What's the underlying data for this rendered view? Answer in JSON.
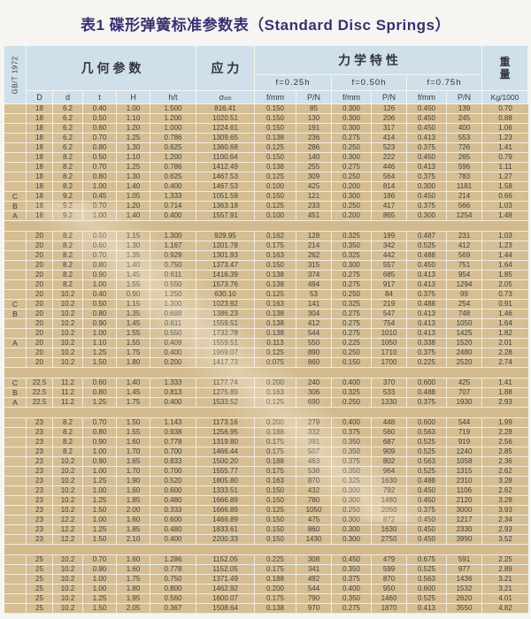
{
  "title": "表1 碟形弹簧标准参数表（Standard Disc Springs）",
  "appearance": {
    "title_color": "#393170",
    "header_bg": "#cfe0ea",
    "cell_bg": "#d5be94",
    "grid_line_color": "#f1ead9",
    "page_bg": "#f6f5f1"
  },
  "header": {
    "standard": "GB/T 1972",
    "geometry_group": "几 何 参 数",
    "stress_group": "应 力",
    "mechanical_group": "力 学 特 性",
    "weight_lines": [
      "重",
      "量"
    ],
    "deflections": [
      "f=0.25h",
      "f=0.50h",
      "f=0.75h"
    ],
    "geo_cols": [
      "D",
      "d",
      "t",
      "H",
      "h/t"
    ],
    "sigma_base": "σ",
    "sigma_sub": "om",
    "f_col": "f/mm",
    "p_col": "P/N",
    "weight_col": "Kg/1000"
  },
  "table": {
    "groups": [
      {
        "rows": [
          [
            "",
            "18",
            "6.2",
            "0.40",
            "1.00",
            "1.500",
            "816.41",
            "0.150",
            "85",
            "0.300",
            "126",
            "0.450",
            "139",
            "0.70"
          ],
          [
            "",
            "18",
            "6.2",
            "0.50",
            "1.10",
            "1.200",
            "1020.51",
            "0.150",
            "130",
            "0.300",
            "206",
            "0.450",
            "245",
            "0.88"
          ],
          [
            "",
            "18",
            "6.2",
            "0.60",
            "1.20",
            "1.000",
            "1224.61",
            "0.150",
            "191",
            "0.300",
            "317",
            "0.450",
            "400",
            "1.06"
          ],
          [
            "",
            "18",
            "6.2",
            "0.70",
            "1.25",
            "0.786",
            "1309.65",
            "0.138",
            "236",
            "0.275",
            "414",
            "0.413",
            "553",
            "1.23"
          ],
          [
            "",
            "18",
            "6.2",
            "0.80",
            "1.30",
            "0.625",
            "1360.68",
            "0.125",
            "286",
            "0.250",
            "523",
            "0.375",
            "726",
            "1.41"
          ],
          [
            "",
            "18",
            "8.2",
            "0.50",
            "1.10",
            "1.200",
            "1100.64",
            "0.150",
            "140",
            "0.300",
            "222",
            "0.450",
            "265",
            "0.79"
          ],
          [
            "",
            "18",
            "8.2",
            "0.70",
            "1.25",
            "0.786",
            "1412.49",
            "0.138",
            "255",
            "0.275",
            "446",
            "0.413",
            "596",
            "1.11"
          ],
          [
            "",
            "18",
            "8.2",
            "0.80",
            "1.30",
            "0.625",
            "1467.53",
            "0.125",
            "309",
            "0.250",
            "564",
            "0.375",
            "783",
            "1.27"
          ],
          [
            "",
            "18",
            "8.2",
            "1.00",
            "1.40",
            "0.400",
            "1467.53",
            "0.100",
            "425",
            "0.200",
            "814",
            "0.300",
            "1181",
            "1.58"
          ],
          [
            "C",
            "18",
            "9.2",
            "0.45",
            "1.05",
            "1.333",
            "1051.59",
            "0.150",
            "121",
            "0.300",
            "186",
            "0.450",
            "214",
            "0.66"
          ],
          [
            "B",
            "18",
            "9.2",
            "0.70",
            "1.20",
            "0.714",
            "1363.18",
            "0.125",
            "233",
            "0.250",
            "417",
            "0.375",
            "566",
            "1.03"
          ],
          [
            "A",
            "18",
            "9.2",
            "1.00",
            "1.40",
            "0.400",
            "1557.91",
            "0.100",
            "451",
            "0.200",
            "865",
            "0.300",
            "1254",
            "1.48"
          ]
        ]
      },
      {
        "rows": [
          [
            "",
            "20",
            "8.2",
            "0.50",
            "1.15",
            "1.300",
            "929.95",
            "0.162",
            "128",
            "0.325",
            "199",
            "0.487",
            "231",
            "1.03"
          ],
          [
            "",
            "20",
            "8.2",
            "0.60",
            "1.30",
            "1.167",
            "1201.78",
            "0.175",
            "214",
            "0.350",
            "342",
            "0.525",
            "412",
            "1.23"
          ],
          [
            "",
            "20",
            "8.2",
            "0.70",
            "1.35",
            "0.929",
            "1301.93",
            "0.163",
            "262",
            "0.325",
            "442",
            "0.488",
            "569",
            "1.44"
          ],
          [
            "",
            "20",
            "8.2",
            "0.80",
            "1.40",
            "0.750",
            "1373.47",
            "0.150",
            "315",
            "0.300",
            "557",
            "0.450",
            "751",
            "1.64"
          ],
          [
            "",
            "20",
            "8.2",
            "0.90",
            "1.45",
            "0.611",
            "1416.39",
            "0.138",
            "374",
            "0.275",
            "685",
            "0.413",
            "954",
            "1.85"
          ],
          [
            "",
            "20",
            "8.2",
            "1.00",
            "1.55",
            "0.550",
            "1573.76",
            "0.138",
            "494",
            "0.275",
            "917",
            "0.413",
            "1294",
            "2.05"
          ],
          [
            "",
            "20",
            "10.2",
            "0.40",
            "0.90",
            "1.250",
            "630.10",
            "0.125",
            "53",
            "0.250",
            "84",
            "0.375",
            "99",
            "0.73"
          ],
          [
            "C",
            "20",
            "10.2",
            "0.50",
            "1.15",
            "1.300",
            "1023.92",
            "0.163",
            "141",
            "0.325",
            "219",
            "0.488",
            "254",
            "0.91"
          ],
          [
            "B",
            "20",
            "10.2",
            "0.80",
            "1.35",
            "0.688",
            "1386.23",
            "0.138",
            "304",
            "0.275",
            "547",
            "0.413",
            "748",
            "1.46"
          ],
          [
            "",
            "20",
            "10.2",
            "0.90",
            "1.45",
            "0.611",
            "1559.51",
            "0.138",
            "412",
            "0.275",
            "754",
            "0.413",
            "1050",
            "1.64"
          ],
          [
            "",
            "20",
            "10.2",
            "1.00",
            "1.55",
            "0.550",
            "1732.78",
            "0.138",
            "544",
            "0.275",
            "1010",
            "0.413",
            "1425",
            "1.82"
          ],
          [
            "A",
            "20",
            "10.2",
            "1.10",
            "1.55",
            "0.409",
            "1559.51",
            "0.113",
            "550",
            "0.225",
            "1050",
            "0.338",
            "1520",
            "2.01"
          ],
          [
            "",
            "20",
            "10.2",
            "1.25",
            "1.75",
            "0.400",
            "1969.07",
            "0.125",
            "890",
            "0.250",
            "1710",
            "0.375",
            "2480",
            "2.28"
          ],
          [
            "",
            "20",
            "10.2",
            "1.50",
            "1.80",
            "0.200",
            "1417.73",
            "0.075",
            "860",
            "0.150",
            "1700",
            "0.225",
            "2520",
            "2.74"
          ]
        ]
      },
      {
        "rows": [
          [
            "C",
            "22.5",
            "11.2",
            "0.60",
            "1.40",
            "1.333",
            "1177.74",
            "0.200",
            "240",
            "0.400",
            "370",
            "0.600",
            "425",
            "1.41"
          ],
          [
            "B",
            "22.5",
            "11.2",
            "0.80",
            "1.45",
            "0.813",
            "1275.89",
            "0.163",
            "306",
            "0.325",
            "533",
            "0.488",
            "707",
            "1.88"
          ],
          [
            "A",
            "22.5",
            "11.2",
            "1.25",
            "1.75",
            "0.400",
            "1533.52",
            "0.125",
            "690",
            "0.250",
            "1330",
            "0.375",
            "1930",
            "2.93"
          ]
        ]
      },
      {
        "rows": [
          [
            "",
            "23",
            "8.2",
            "0.70",
            "1.50",
            "1.143",
            "1173.16",
            "0.200",
            "279",
            "0.400",
            "448",
            "0.600",
            "544",
            "1.99"
          ],
          [
            "",
            "23",
            "8.2",
            "0.80",
            "1.55",
            "0.938",
            "1256.95",
            "0.188",
            "332",
            "0.375",
            "560",
            "0.563",
            "719",
            "2.28"
          ],
          [
            "",
            "23",
            "8.2",
            "0.90",
            "1.60",
            "0.778",
            "1319.80",
            "0.175",
            "391",
            "0.350",
            "687",
            "0.525",
            "919",
            "2.56"
          ],
          [
            "",
            "23",
            "8.2",
            "1.00",
            "1.70",
            "0.700",
            "1466.44",
            "0.175",
            "507",
            "0.350",
            "909",
            "0.525",
            "1240",
            "2.85"
          ],
          [
            "",
            "23",
            "10.2",
            "0.90",
            "1.65",
            "0.833",
            "1500.20",
            "0.188",
            "463",
            "0.375",
            "802",
            "0.563",
            "1058",
            "2.36"
          ],
          [
            "",
            "23",
            "10.2",
            "1.00",
            "1.70",
            "0.700",
            "1555.77",
            "0.175",
            "538",
            "0.350",
            "964",
            "0.525",
            "1315",
            "2.62"
          ],
          [
            "",
            "23",
            "10.2",
            "1.25",
            "1.90",
            "0.520",
            "1805.80",
            "0.163",
            "870",
            "0.325",
            "1630",
            "0.488",
            "2310",
            "3.28"
          ],
          [
            "",
            "23",
            "10.2",
            "1.00",
            "1.60",
            "0.600",
            "1333.51",
            "0.150",
            "432",
            "0.300",
            "792",
            "0.450",
            "1106",
            "2.62"
          ],
          [
            "",
            "23",
            "10.2",
            "1.25",
            "1.85",
            "0.480",
            "1666.89",
            "0.150",
            "780",
            "0.300",
            "1480",
            "0.450",
            "2120",
            "3.28"
          ],
          [
            "",
            "23",
            "10.2",
            "1.50",
            "2.00",
            "0.333",
            "1666.89",
            "0.125",
            "1050",
            "0.250",
            "2050",
            "0.375",
            "3000",
            "3.93"
          ],
          [
            "",
            "23",
            "12.2",
            "1.00",
            "1.60",
            "0.600",
            "1466.89",
            "0.150",
            "475",
            "0.300",
            "872",
            "0.450",
            "1217",
            "2.34"
          ],
          [
            "",
            "23",
            "12.2",
            "1.25",
            "1.85",
            "0.480",
            "1833.61",
            "0.150",
            "860",
            "0.300",
            "1630",
            "0.450",
            "2330",
            "2.93"
          ],
          [
            "",
            "23",
            "12.2",
            "1.50",
            "2.10",
            "0.400",
            "2200.33",
            "0.150",
            "1430",
            "0.300",
            "2750",
            "0.450",
            "3990",
            "3.52"
          ]
        ]
      },
      {
        "rows": [
          [
            "",
            "25",
            "10.2",
            "0.70",
            "1.60",
            "1.286",
            "1152.05",
            "0.225",
            "308",
            "0.450",
            "479",
            "0.675",
            "591",
            "2.25"
          ],
          [
            "",
            "25",
            "10.2",
            "0.90",
            "1.60",
            "0.778",
            "1152.05",
            "0.175",
            "341",
            "0.350",
            "599",
            "0.525",
            "977",
            "2.89"
          ],
          [
            "",
            "25",
            "10.2",
            "1.00",
            "1.75",
            "0.750",
            "1371.49",
            "0.188",
            "492",
            "0.375",
            "870",
            "0.563",
            "1436",
            "3.21"
          ],
          [
            "",
            "25",
            "10.2",
            "1.00",
            "1.80",
            "0.800",
            "1462.92",
            "0.200",
            "544",
            "0.400",
            "950",
            "0.600",
            "1532",
            "3.21"
          ],
          [
            "",
            "25",
            "10.2",
            "1.25",
            "1.95",
            "0.560",
            "1600.07",
            "0.175",
            "790",
            "0.350",
            "1460",
            "0.525",
            "2620",
            "4.01"
          ],
          [
            "",
            "25",
            "10.2",
            "1.50",
            "2.05",
            "0.367",
            "1508.64",
            "0.138",
            "970",
            "0.275",
            "1870",
            "0.413",
            "3550",
            "4.82"
          ]
        ]
      }
    ]
  }
}
